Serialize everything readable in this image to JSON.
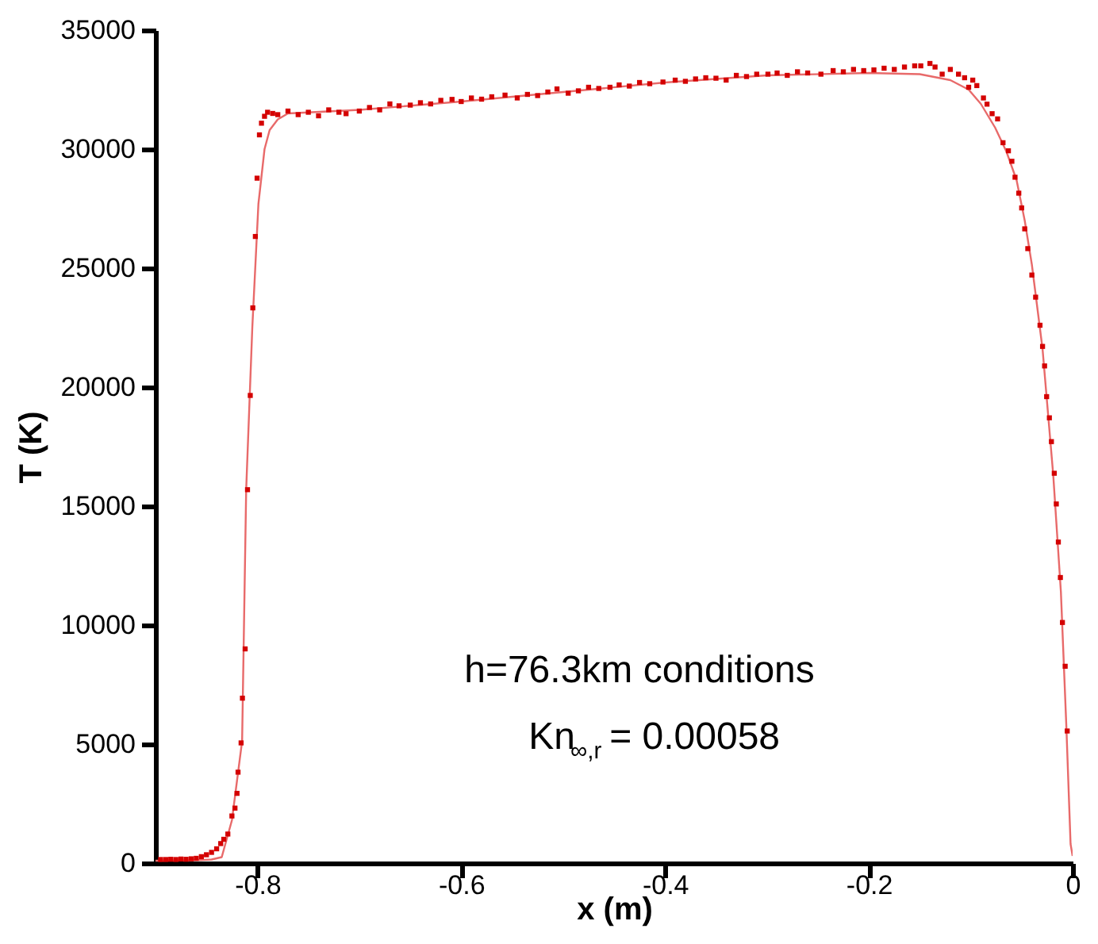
{
  "chart_data": {
    "type": "line",
    "xlabel": "x (m)",
    "ylabel": "T (K)",
    "xlim": [
      -0.9,
      0
    ],
    "xticks": [
      -0.8,
      -0.6,
      -0.4,
      -0.2,
      0
    ],
    "ylim": [
      0,
      35000
    ],
    "yticks": [
      0,
      5000,
      10000,
      15000,
      20000,
      25000,
      30000,
      35000
    ],
    "grid": false,
    "annotations": [
      "h=76.3km conditions",
      "Kn$_{∞,r}$= 0.00058"
    ],
    "series": [
      {
        "color": "#e86a6a",
        "marker": "none",
        "line_style": "solid",
        "x": [
          -0.9,
          -0.86,
          -0.845,
          -0.835,
          -0.825,
          -0.815,
          -0.811,
          -0.805,
          -0.799,
          -0.793,
          -0.788,
          -0.78,
          -0.77,
          -0.7,
          -0.6,
          -0.5,
          -0.4,
          -0.3,
          -0.2,
          -0.15,
          -0.12,
          -0.102,
          -0.09,
          -0.076,
          -0.065,
          -0.055,
          -0.047,
          -0.04,
          -0.0295,
          -0.019,
          -0.0115,
          -0.0062,
          -0.002,
          0
        ],
        "values": [
          100,
          120,
          150,
          250,
          1800,
          5130,
          15700,
          22500,
          27700,
          30000,
          30800,
          31250,
          31500,
          31650,
          32000,
          32400,
          32800,
          33100,
          33200,
          33150,
          32900,
          32500,
          31900,
          30900,
          29900,
          28700,
          27000,
          25150,
          21600,
          16300,
          11400,
          5800,
          800,
          300
        ]
      },
      {
        "type": "scatter",
        "color": "#d40000",
        "marker": "square",
        "x": [
          -0.895,
          -0.89,
          -0.885,
          -0.88,
          -0.875,
          -0.87,
          -0.865,
          -0.86,
          -0.855,
          -0.85,
          -0.845,
          -0.84,
          -0.836,
          -0.833,
          -0.829,
          -0.825,
          -0.822,
          -0.82,
          -0.819,
          -0.816,
          -0.8147,
          -0.812,
          -0.8097,
          -0.807,
          -0.8045,
          -0.802,
          -0.8003,
          -0.798,
          -0.796,
          -0.793,
          -0.79,
          -0.785,
          -0.78,
          -0.77,
          -0.76,
          -0.75,
          -0.74,
          -0.73,
          -0.72,
          -0.713,
          -0.7,
          -0.69,
          -0.68,
          -0.67,
          -0.661,
          -0.65,
          -0.64,
          -0.63,
          -0.62,
          -0.609,
          -0.6,
          -0.59,
          -0.58,
          -0.57,
          -0.557,
          -0.545,
          -0.535,
          -0.525,
          -0.515,
          -0.506,
          -0.495,
          -0.485,
          -0.475,
          -0.465,
          -0.454,
          -0.445,
          -0.435,
          -0.425,
          -0.415,
          -0.402,
          -0.39,
          -0.38,
          -0.37,
          -0.36,
          -0.35,
          -0.34,
          -0.33,
          -0.32,
          -0.31,
          -0.299,
          -0.29,
          -0.28,
          -0.27,
          -0.26,
          -0.247,
          -0.235,
          -0.225,
          -0.215,
          -0.205,
          -0.195,
          -0.185,
          -0.175,
          -0.165,
          -0.155,
          -0.149,
          -0.14,
          -0.135,
          -0.128,
          -0.12,
          -0.112,
          -0.106,
          -0.102,
          -0.098,
          -0.094,
          -0.0875,
          -0.084,
          -0.079,
          -0.0736,
          -0.0683,
          -0.063,
          -0.0596,
          -0.0565,
          -0.0528,
          -0.05,
          -0.047,
          -0.044,
          -0.04,
          -0.0363,
          -0.032,
          -0.0295,
          -0.0275,
          -0.0255,
          -0.0228,
          -0.0208,
          -0.018,
          -0.016,
          -0.014,
          -0.012,
          -0.01,
          -0.0073,
          -0.0053
        ],
        "values": [
          150,
          150,
          160,
          150,
          170,
          160,
          180,
          200,
          270,
          350,
          450,
          600,
          820,
          1000,
          1220,
          1980,
          2310,
          2930,
          3820,
          5050,
          6930,
          9000,
          15690,
          19650,
          23330,
          26330,
          28780,
          30600,
          31090,
          31380,
          31550,
          31500,
          31450,
          31600,
          31450,
          31550,
          31400,
          31650,
          31550,
          31490,
          31600,
          31750,
          31650,
          31900,
          31820,
          31850,
          31950,
          31900,
          32050,
          32090,
          32000,
          32150,
          32100,
          32200,
          32270,
          32150,
          32300,
          32250,
          32400,
          32530,
          32350,
          32450,
          32600,
          32550,
          32600,
          32700,
          32650,
          32800,
          32750,
          32820,
          32900,
          32850,
          32950,
          33000,
          32980,
          32900,
          33100,
          33050,
          33150,
          33150,
          33200,
          33100,
          33250,
          33200,
          33150,
          33300,
          33250,
          33350,
          33300,
          33330,
          33400,
          33350,
          33450,
          33500,
          33500,
          33600,
          33450,
          33150,
          33350,
          33150,
          33000,
          32600,
          32900,
          32670,
          32150,
          31890,
          31490,
          31270,
          30270,
          29930,
          29490,
          28820,
          28150,
          27530,
          26650,
          25820,
          24710,
          23780,
          22600,
          21710,
          20890,
          19600,
          18710,
          17710,
          16380,
          15090,
          13490,
          12000,
          10110,
          8270,
          5550
        ]
      }
    ]
  }
}
